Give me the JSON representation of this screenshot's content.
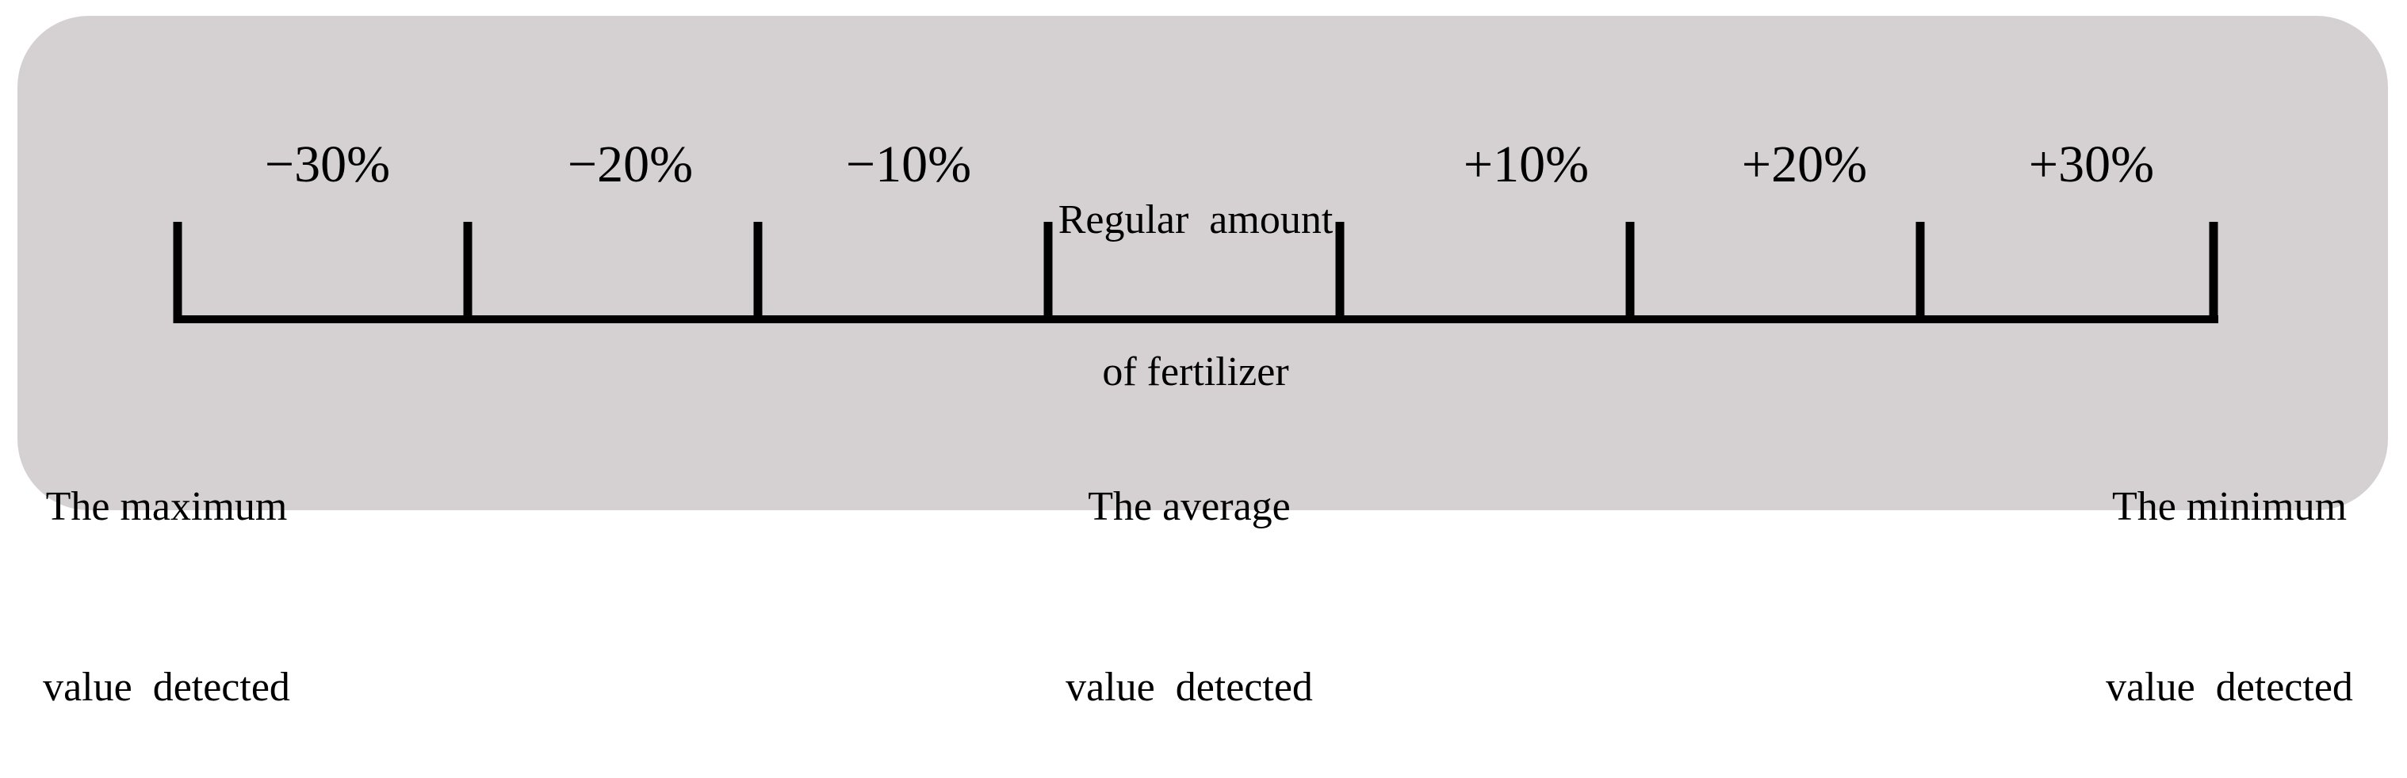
{
  "scale": {
    "segments": [
      {
        "label": "−30%"
      },
      {
        "label": "−20%"
      },
      {
        "label": "−10%"
      },
      {
        "lines": [
          "Regular  amount",
          "of fertilizer"
        ]
      },
      {
        "label": "+10%"
      },
      {
        "label": "+20%"
      },
      {
        "label": "+30%"
      }
    ],
    "ends": {
      "left": [
        "The maximum",
        "value  detected"
      ],
      "center": [
        "The average",
        "value  detected"
      ],
      "right": [
        "The minimum",
        "value  detected"
      ]
    }
  },
  "colors": {
    "panel": "#d5d1d2",
    "line": "#000000",
    "text": "#000000"
  }
}
